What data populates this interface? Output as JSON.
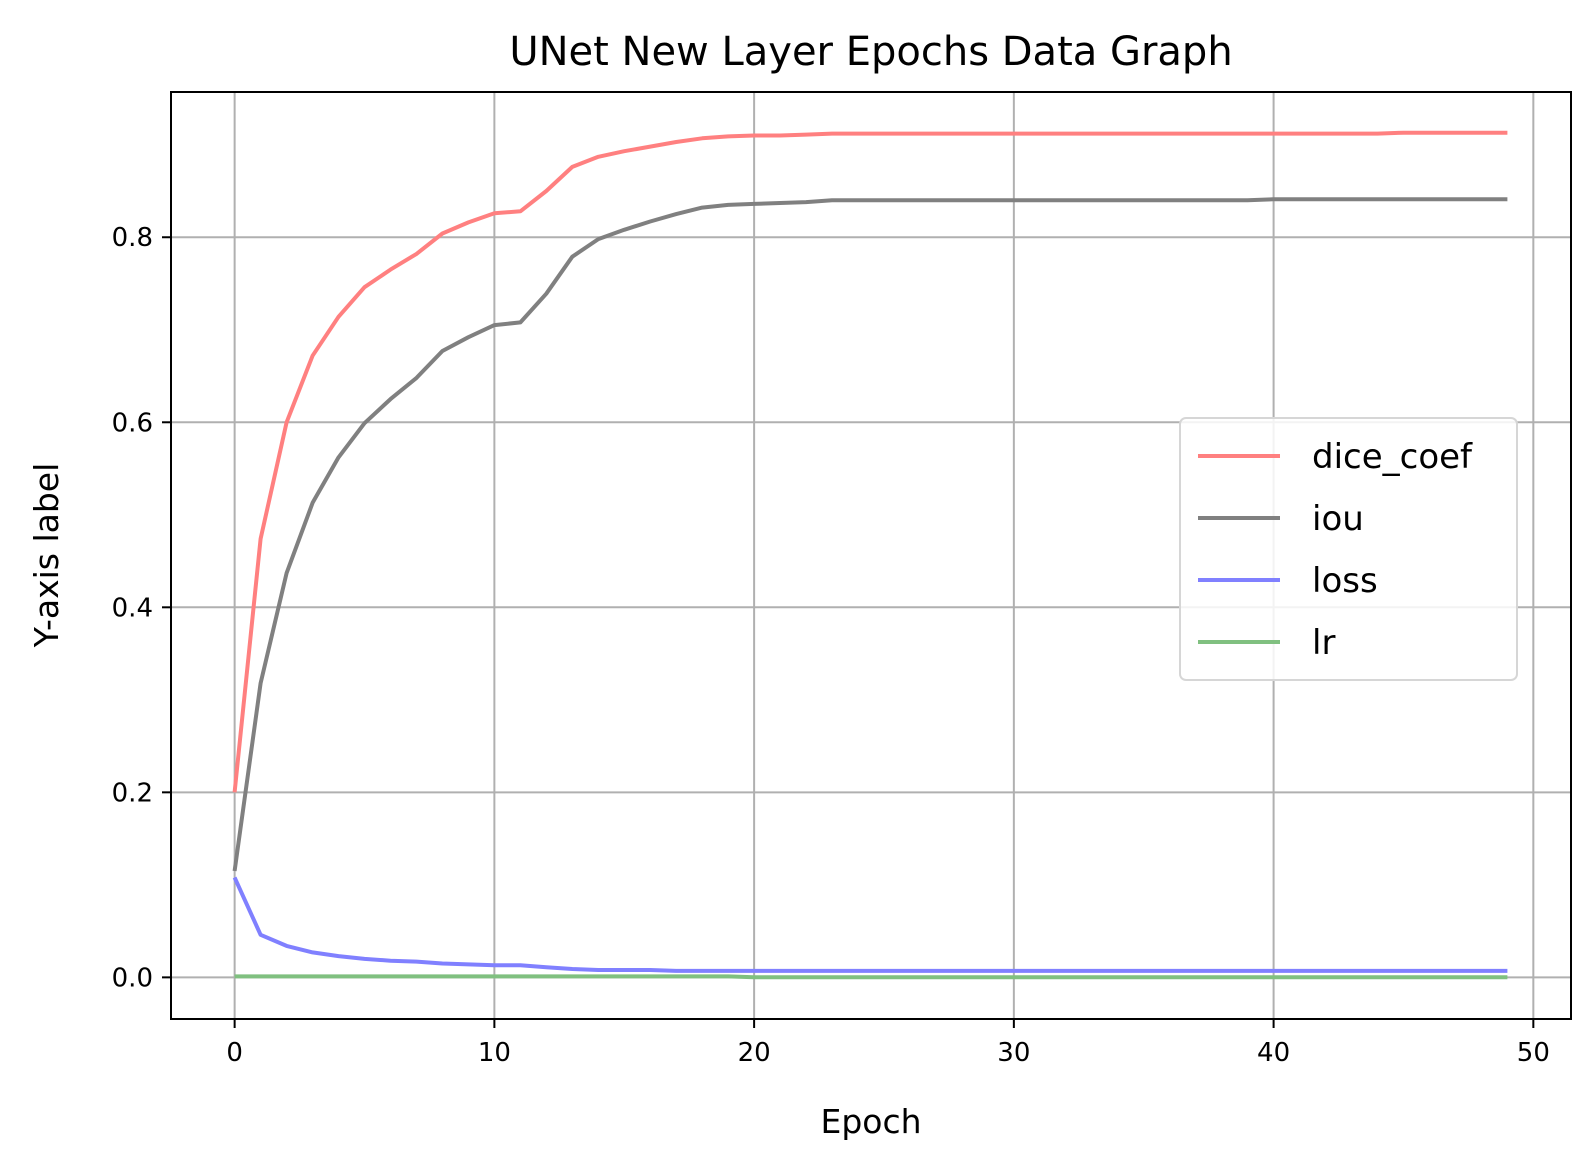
{
  "chart_data": {
    "type": "line",
    "title": "UNet New Layer Epochs Data Graph",
    "xlabel": "Epoch",
    "ylabel": "Y-axis label",
    "xlim": [
      -2.45,
      51.45
    ],
    "ylim": [
      -0.045,
      0.957
    ],
    "xticks": [
      0,
      10,
      20,
      30,
      40,
      50
    ],
    "yticks": [
      0.0,
      0.2,
      0.4,
      0.6,
      0.8
    ],
    "xtick_labels": [
      "0",
      "10",
      "20",
      "30",
      "40",
      "50"
    ],
    "ytick_labels": [
      "0.0",
      "0.2",
      "0.4",
      "0.6",
      "0.8"
    ],
    "grid": true,
    "legend_position": "center-right",
    "x": [
      0,
      1,
      2,
      3,
      4,
      5,
      6,
      7,
      8,
      9,
      10,
      11,
      12,
      13,
      14,
      15,
      16,
      17,
      18,
      19,
      20,
      21,
      22,
      23,
      24,
      25,
      26,
      27,
      28,
      29,
      30,
      31,
      32,
      33,
      34,
      35,
      36,
      37,
      38,
      39,
      40,
      41,
      42,
      43,
      44,
      45,
      46,
      47,
      48,
      49
    ],
    "series": [
      {
        "name": "dice_coef",
        "color": "#ff8080",
        "values": [
          0.2,
          0.474,
          0.6,
          0.672,
          0.714,
          0.746,
          0.765,
          0.782,
          0.804,
          0.816,
          0.826,
          0.828,
          0.85,
          0.876,
          0.887,
          0.893,
          0.898,
          0.903,
          0.907,
          0.909,
          0.91,
          0.91,
          0.911,
          0.912,
          0.912,
          0.912,
          0.912,
          0.912,
          0.912,
          0.912,
          0.912,
          0.912,
          0.912,
          0.912,
          0.912,
          0.912,
          0.912,
          0.912,
          0.912,
          0.912,
          0.912,
          0.912,
          0.912,
          0.912,
          0.912,
          0.913,
          0.913,
          0.913,
          0.913,
          0.913
        ]
      },
      {
        "name": "iou",
        "color": "#808080",
        "values": [
          0.115,
          0.318,
          0.437,
          0.513,
          0.562,
          0.599,
          0.625,
          0.648,
          0.677,
          0.692,
          0.705,
          0.708,
          0.739,
          0.779,
          0.798,
          0.808,
          0.817,
          0.825,
          0.832,
          0.835,
          0.836,
          0.837,
          0.838,
          0.84,
          0.84,
          0.84,
          0.84,
          0.84,
          0.84,
          0.84,
          0.84,
          0.84,
          0.84,
          0.84,
          0.84,
          0.84,
          0.84,
          0.84,
          0.84,
          0.84,
          0.841,
          0.841,
          0.841,
          0.841,
          0.841,
          0.841,
          0.841,
          0.841,
          0.841,
          0.841
        ]
      },
      {
        "name": "loss",
        "color": "#8080ff",
        "values": [
          0.108,
          0.046,
          0.034,
          0.027,
          0.023,
          0.02,
          0.018,
          0.017,
          0.015,
          0.014,
          0.013,
          0.013,
          0.011,
          0.009,
          0.008,
          0.008,
          0.008,
          0.007,
          0.007,
          0.007,
          0.007,
          0.007,
          0.007,
          0.007,
          0.007,
          0.007,
          0.007,
          0.007,
          0.007,
          0.007,
          0.007,
          0.007,
          0.007,
          0.007,
          0.007,
          0.007,
          0.007,
          0.007,
          0.007,
          0.007,
          0.007,
          0.007,
          0.007,
          0.007,
          0.007,
          0.007,
          0.007,
          0.007,
          0.007,
          0.007
        ]
      },
      {
        "name": "lr",
        "color": "#80c080",
        "values": [
          0.001,
          0.001,
          0.001,
          0.001,
          0.001,
          0.001,
          0.001,
          0.001,
          0.001,
          0.001,
          0.001,
          0.001,
          0.001,
          0.001,
          0.001,
          0.001,
          0.001,
          0.001,
          0.001,
          0.001,
          0.0001,
          0.0001,
          0.0001,
          0.0001,
          0.0001,
          0.0001,
          0.0001,
          0.0001,
          0.0001,
          0.0001,
          0.0001,
          0.0001,
          0.0001,
          0.0001,
          0.0001,
          0.0001,
          0.0001,
          0.0001,
          0.0001,
          0.0001,
          0.0001,
          0.0001,
          0.0001,
          0.0001,
          0.0001,
          0.0001,
          0.0001,
          0.0001,
          0.0001,
          0.0001
        ]
      }
    ]
  }
}
